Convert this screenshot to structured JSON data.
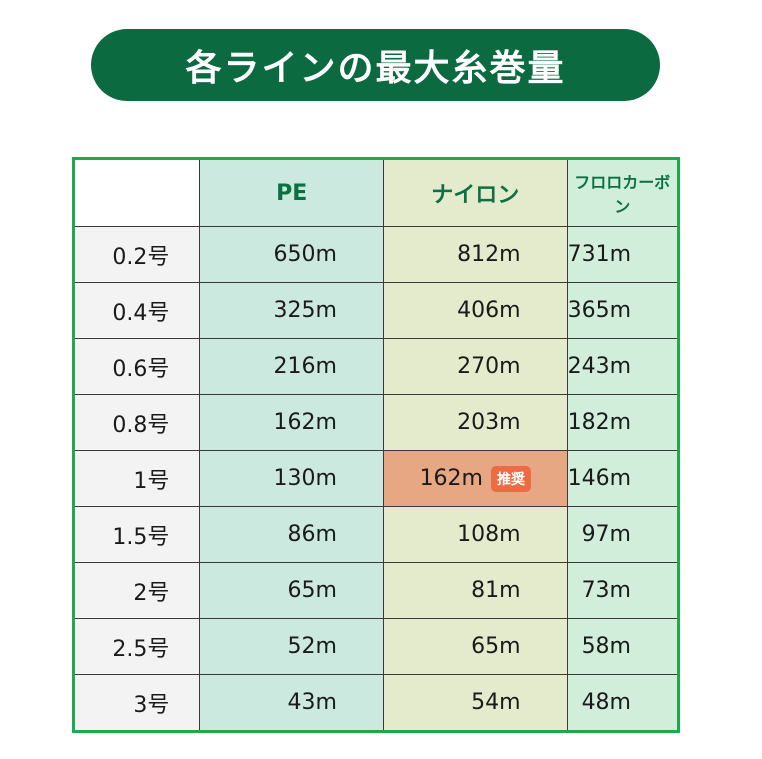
{
  "title": "各ラインの最大糸巻量",
  "columns": [
    "",
    "PE",
    "ナイロン",
    "フロロカーボン"
  ],
  "recommended_badge": "推奨",
  "rows": [
    {
      "size": "0.2号",
      "pe": "650m",
      "nylon": "812m",
      "fluoro": "731m"
    },
    {
      "size": "0.4号",
      "pe": "325m",
      "nylon": "406m",
      "fluoro": "365m"
    },
    {
      "size": "0.6号",
      "pe": "216m",
      "nylon": "270m",
      "fluoro": "243m"
    },
    {
      "size": "0.8号",
      "pe": "162m",
      "nylon": "203m",
      "fluoro": "182m"
    },
    {
      "size": "1号",
      "pe": "130m",
      "nylon": "162m",
      "fluoro": "146m",
      "recommended": "nylon"
    },
    {
      "size": "1.5号",
      "pe": "86m",
      "nylon": "108m",
      "fluoro": "97m"
    },
    {
      "size": "2号",
      "pe": "65m",
      "nylon": "81m",
      "fluoro": "73m"
    },
    {
      "size": "2.5号",
      "pe": "52m",
      "nylon": "65m",
      "fluoro": "58m"
    },
    {
      "size": "3号",
      "pe": "43m",
      "nylon": "54m",
      "fluoro": "48m"
    }
  ],
  "colors": {
    "title_bg": "#0b6a40",
    "pe": "#cce9df",
    "nylon": "#e3ebcc",
    "fluoro": "#d0eeda",
    "recommended": "#e8a783",
    "badge": "#ec6b42"
  }
}
